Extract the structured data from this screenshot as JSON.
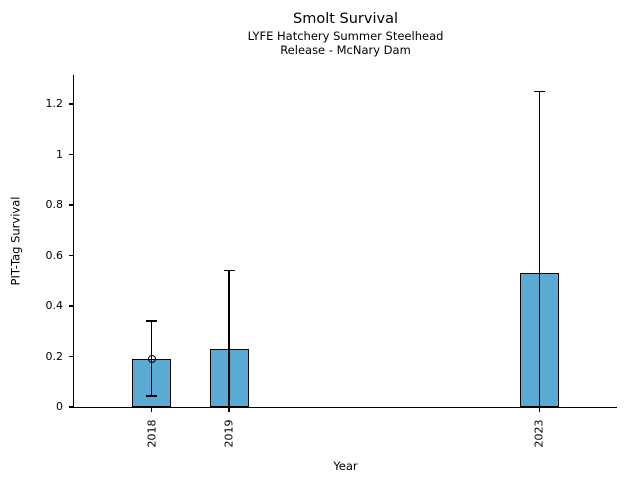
{
  "chart_data": {
    "type": "bar",
    "title": "Smolt Survival",
    "subtitle": [
      "LYFE Hatchery Summer Steelhead",
      "Release - McNary Dam"
    ],
    "xlabel": "Year",
    "ylabel": "PIT-Tag Survival",
    "categories": [
      2018,
      2019,
      2023
    ],
    "values": [
      0.19,
      0.23,
      0.53
    ],
    "error_low": [
      0.044,
      0,
      0
    ],
    "error_high": [
      0.34,
      0.54,
      1.25
    ],
    "markers": [
      {
        "x": 2018,
        "y": 0.19
      }
    ],
    "xlim": [
      2017,
      2024
    ],
    "ylim": [
      0,
      1.315
    ],
    "yticks": [
      0,
      0.2,
      0.4,
      0.6,
      0.8,
      1,
      1.2
    ],
    "ytick_labels": [
      "0",
      "0.2",
      "0.4",
      "0.6",
      "0.8",
      "1",
      "1.2"
    ],
    "xtick_labels": [
      "2018",
      "2019",
      "2023"
    ],
    "bar_width_years": 0.5,
    "bar_color": "#5AAAD4",
    "bar_edge_color": "#000000",
    "error_color": "#000000",
    "grid": false,
    "legend": false
  }
}
